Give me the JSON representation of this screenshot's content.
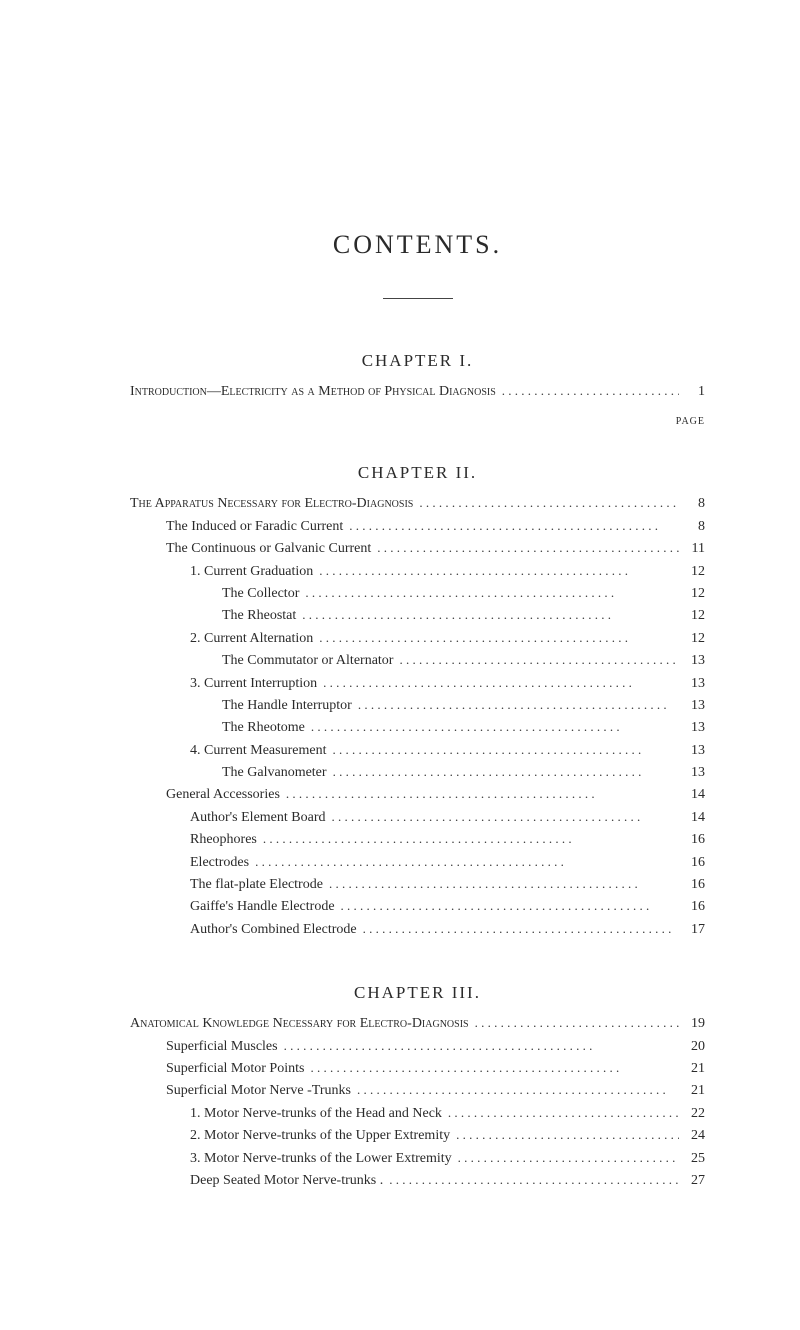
{
  "title": "CONTENTS.",
  "page_label": "PAGE",
  "chapters": [
    {
      "heading": "CHAPTER I.",
      "entries": [
        {
          "label": "Introduction—Electricity as a Method of Physical Diagnosis",
          "page": "1",
          "caps": true,
          "indent": 0
        }
      ]
    },
    {
      "heading": "CHAPTER II.",
      "entries": [
        {
          "label": "The Apparatus Necessary for Electro-Diagnosis",
          "page": "8",
          "caps": true,
          "indent": 0
        },
        {
          "label": "The Induced or Faradic Current",
          "page": "8",
          "caps": false,
          "indent": 1
        },
        {
          "label": "The Continuous or Galvanic Current",
          "page": "11",
          "caps": false,
          "indent": 1
        },
        {
          "label": "1. Current Graduation",
          "page": "12",
          "caps": false,
          "indent": 2
        },
        {
          "label": "The Collector",
          "page": "12",
          "caps": false,
          "indent": 3
        },
        {
          "label": "The Rheostat",
          "page": "12",
          "caps": false,
          "indent": 3
        },
        {
          "label": "2. Current Alternation",
          "page": "12",
          "caps": false,
          "indent": 2
        },
        {
          "label": "The Commutator or Alternator",
          "page": "13",
          "caps": false,
          "indent": 3
        },
        {
          "label": "3. Current Interruption",
          "page": "13",
          "caps": false,
          "indent": 2
        },
        {
          "label": "The Handle Interruptor",
          "page": "13",
          "caps": false,
          "indent": 3
        },
        {
          "label": "The Rheotome",
          "page": "13",
          "caps": false,
          "indent": 3
        },
        {
          "label": "4. Current Measurement",
          "page": "13",
          "caps": false,
          "indent": 2
        },
        {
          "label": "The Galvanometer",
          "page": "13",
          "caps": false,
          "indent": 3
        },
        {
          "label": "General Accessories",
          "page": "14",
          "caps": false,
          "indent": 1
        },
        {
          "label": "Author's Element Board",
          "page": "14",
          "caps": false,
          "indent": 2
        },
        {
          "label": "Rheophores",
          "page": "16",
          "caps": false,
          "indent": 2
        },
        {
          "label": "Electrodes",
          "page": "16",
          "caps": false,
          "indent": 2
        },
        {
          "label": "The flat-plate Electrode",
          "page": "16",
          "caps": false,
          "indent": 2
        },
        {
          "label": "Gaiffe's Handle Electrode",
          "page": "16",
          "caps": false,
          "indent": 2
        },
        {
          "label": "Author's Combined Electrode",
          "page": "17",
          "caps": false,
          "indent": 2
        }
      ]
    },
    {
      "heading": "CHAPTER III.",
      "entries": [
        {
          "label": "Anatomical Knowledge Necessary for Electro-Diagnosis",
          "page": "19",
          "caps": true,
          "indent": 0
        },
        {
          "label": "Superficial Muscles",
          "page": "20",
          "caps": false,
          "indent": 1
        },
        {
          "label": "Superficial Motor Points",
          "page": "21",
          "caps": false,
          "indent": 1
        },
        {
          "label": "Superficial Motor Nerve -Trunks",
          "page": "21",
          "caps": false,
          "indent": 1
        },
        {
          "label": "1. Motor Nerve-trunks of the Head and Neck",
          "page": "22",
          "caps": false,
          "indent": 2
        },
        {
          "label": "2. Motor Nerve-trunks of the Upper Extremity",
          "page": "24",
          "caps": false,
          "indent": 2
        },
        {
          "label": "3. Motor Nerve-trunks of the Lower Extremity",
          "page": "25",
          "caps": false,
          "indent": 2
        },
        {
          "label": "Deep Seated Motor Nerve-trunks .",
          "page": "27",
          "caps": false,
          "indent": 2
        }
      ]
    }
  ]
}
